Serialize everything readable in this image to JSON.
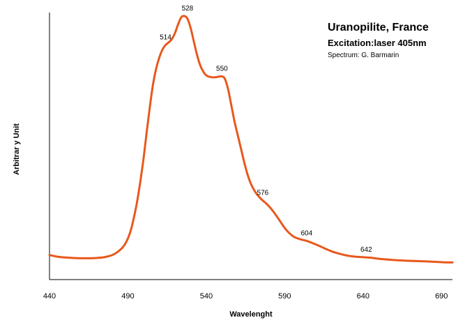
{
  "chart_data": {
    "type": "line",
    "title": "Uranopilite,  France",
    "subtitle": "Excitation:laser 405nm",
    "credit": "Spectrum: G. Barmarin",
    "xlabel": "Wavelenght",
    "ylabel": "Arbitrar y Unit",
    "xlim": [
      440,
      697
    ],
    "ylim": [
      0,
      1
    ],
    "xticks": [
      440,
      490,
      540,
      590,
      640,
      690
    ],
    "grid": false,
    "colors": {
      "line": "#E8581C",
      "axis": "#000000"
    },
    "series": [
      {
        "x": [
          440,
          445,
          450,
          455,
          460,
          465,
          470,
          475,
          480,
          483,
          486,
          488,
          490,
          492,
          494,
          496,
          498,
          500,
          502,
          504,
          506,
          508,
          510,
          512,
          514,
          516,
          518,
          520,
          522,
          524,
          526,
          528,
          530,
          532,
          534,
          536,
          538,
          540,
          543,
          546,
          550,
          552,
          554,
          556,
          558,
          560,
          562,
          564,
          566,
          568,
          570,
          572,
          574,
          576,
          578,
          580,
          582,
          584,
          586,
          588,
          590,
          593,
          596,
          600,
          604,
          608,
          612,
          616,
          620,
          625,
          630,
          635,
          640,
          645,
          650,
          660,
          670,
          680,
          690,
          697
        ],
        "y": [
          0.093,
          0.087,
          0.084,
          0.082,
          0.081,
          0.081,
          0.082,
          0.085,
          0.093,
          0.103,
          0.118,
          0.133,
          0.156,
          0.19,
          0.24,
          0.3,
          0.375,
          0.46,
          0.56,
          0.655,
          0.74,
          0.8,
          0.842,
          0.872,
          0.89,
          0.9,
          0.912,
          0.935,
          0.968,
          0.995,
          1.0,
          0.99,
          0.955,
          0.905,
          0.855,
          0.815,
          0.79,
          0.775,
          0.768,
          0.768,
          0.771,
          0.76,
          0.72,
          0.66,
          0.6,
          0.55,
          0.5,
          0.45,
          0.405,
          0.37,
          0.345,
          0.326,
          0.312,
          0.3,
          0.29,
          0.278,
          0.264,
          0.248,
          0.231,
          0.213,
          0.196,
          0.176,
          0.162,
          0.153,
          0.147,
          0.138,
          0.128,
          0.117,
          0.107,
          0.098,
          0.091,
          0.087,
          0.085,
          0.083,
          0.079,
          0.074,
          0.071,
          0.069,
          0.066,
          0.065
        ]
      }
    ],
    "annotations": [
      {
        "label": "528",
        "x": 528,
        "y": 1.0
      },
      {
        "label": "514",
        "x": 514,
        "y": 0.89
      },
      {
        "label": "550",
        "x": 550,
        "y": 0.771
      },
      {
        "label": "576",
        "x": 576,
        "y": 0.3
      },
      {
        "label": "604",
        "x": 604,
        "y": 0.147
      },
      {
        "label": "642",
        "x": 642,
        "y": 0.084
      }
    ]
  }
}
